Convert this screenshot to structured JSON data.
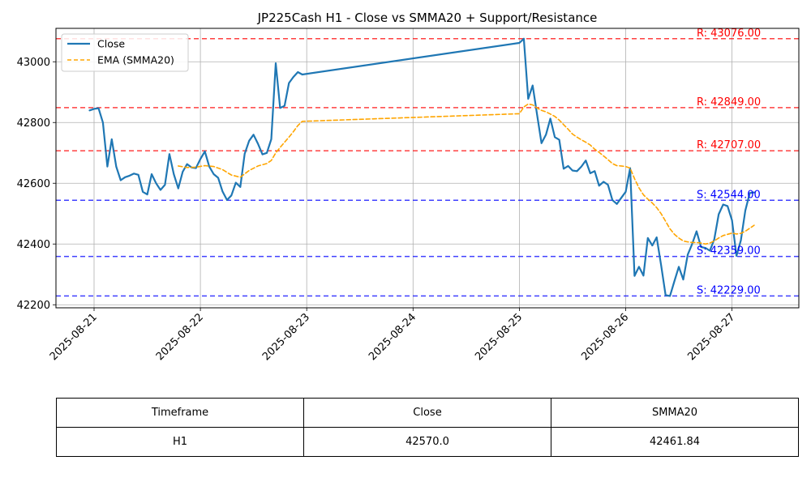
{
  "chart_data": {
    "type": "line",
    "title": "JP225Cash H1 - Close vs SMMA20 + Support/Resistance",
    "xlabel": "",
    "ylabel": "",
    "x_ticks": [
      "2025-08-21",
      "2025-08-22",
      "2025-08-23",
      "2025-08-24",
      "2025-08-25",
      "2025-08-26",
      "2025-08-27"
    ],
    "y_ticks": [
      42200,
      42400,
      42600,
      42800,
      43000
    ],
    "ylim": [
      42190,
      43110
    ],
    "grid": true,
    "legend": "top-left",
    "series": [
      {
        "name": "Close",
        "color": "#1f77b4",
        "style": "solid",
        "points": [
          [
            "2025-08-20 23:00",
            42840
          ],
          [
            "2025-08-21 00:00",
            42845
          ],
          [
            "2025-08-21 01:00",
            42847
          ],
          [
            "2025-08-21 02:00",
            42800
          ],
          [
            "2025-08-21 03:00",
            42655
          ],
          [
            "2025-08-21 04:00",
            42745
          ],
          [
            "2025-08-21 05:00",
            42655
          ],
          [
            "2025-08-21 06:00",
            42610
          ],
          [
            "2025-08-21 07:00",
            42620
          ],
          [
            "2025-08-21 08:00",
            42625
          ],
          [
            "2025-08-21 09:00",
            42632
          ],
          [
            "2025-08-21 10:00",
            42628
          ],
          [
            "2025-08-21 11:00",
            42572
          ],
          [
            "2025-08-21 12:00",
            42563
          ],
          [
            "2025-08-21 13:00",
            42630
          ],
          [
            "2025-08-21 14:00",
            42600
          ],
          [
            "2025-08-21 15:00",
            42578
          ],
          [
            "2025-08-21 16:00",
            42595
          ],
          [
            "2025-08-21 17:00",
            42696
          ],
          [
            "2025-08-21 18:00",
            42630
          ],
          [
            "2025-08-21 19:00",
            42583
          ],
          [
            "2025-08-21 20:00",
            42638
          ],
          [
            "2025-08-21 21:00",
            42663
          ],
          [
            "2025-08-21 22:00",
            42652
          ],
          [
            "2025-08-21 23:00",
            42650
          ],
          [
            "2025-08-22 00:00",
            42680
          ],
          [
            "2025-08-22 01:00",
            42705
          ],
          [
            "2025-08-22 02:00",
            42655
          ],
          [
            "2025-08-22 03:00",
            42630
          ],
          [
            "2025-08-22 04:00",
            42618
          ],
          [
            "2025-08-22 05:00",
            42573
          ],
          [
            "2025-08-22 06:00",
            42545
          ],
          [
            "2025-08-22 07:00",
            42560
          ],
          [
            "2025-08-22 08:00",
            42602
          ],
          [
            "2025-08-22 09:00",
            42588
          ],
          [
            "2025-08-22 10:00",
            42697
          ],
          [
            "2025-08-22 11:00",
            42740
          ],
          [
            "2025-08-22 12:00",
            42760
          ],
          [
            "2025-08-22 13:00",
            42730
          ],
          [
            "2025-08-22 14:00",
            42695
          ],
          [
            "2025-08-22 15:00",
            42700
          ],
          [
            "2025-08-22 16:00",
            42745
          ],
          [
            "2025-08-22 17:00",
            42995
          ],
          [
            "2025-08-22 18:00",
            42848
          ],
          [
            "2025-08-22 19:00",
            42855
          ],
          [
            "2025-08-22 20:00",
            42930
          ],
          [
            "2025-08-22 21:00",
            42950
          ],
          [
            "2025-08-22 22:00",
            42966
          ],
          [
            "2025-08-22 23:00",
            42958
          ],
          [
            "2025-08-25 00:00",
            43062
          ],
          [
            "2025-08-25 01:00",
            43076
          ],
          [
            "2025-08-25 02:00",
            42878
          ],
          [
            "2025-08-25 03:00",
            42922
          ],
          [
            "2025-08-25 04:00",
            42825
          ],
          [
            "2025-08-25 05:00",
            42732
          ],
          [
            "2025-08-25 06:00",
            42760
          ],
          [
            "2025-08-25 07:00",
            42813
          ],
          [
            "2025-08-25 08:00",
            42752
          ],
          [
            "2025-08-25 09:00",
            42743
          ],
          [
            "2025-08-25 10:00",
            42648
          ],
          [
            "2025-08-25 11:00",
            42657
          ],
          [
            "2025-08-25 12:00",
            42642
          ],
          [
            "2025-08-25 13:00",
            42640
          ],
          [
            "2025-08-25 14:00",
            42655
          ],
          [
            "2025-08-25 15:00",
            42675
          ],
          [
            "2025-08-25 16:00",
            42633
          ],
          [
            "2025-08-25 17:00",
            42640
          ],
          [
            "2025-08-25 18:00",
            42592
          ],
          [
            "2025-08-25 19:00",
            42605
          ],
          [
            "2025-08-25 20:00",
            42595
          ],
          [
            "2025-08-25 21:00",
            42545
          ],
          [
            "2025-08-25 22:00",
            42532
          ],
          [
            "2025-08-25 23:00",
            42552
          ],
          [
            "2025-08-26 00:00",
            42572
          ],
          [
            "2025-08-26 01:00",
            42650
          ],
          [
            "2025-08-26 02:00",
            42295
          ],
          [
            "2025-08-26 03:00",
            42325
          ],
          [
            "2025-08-26 04:00",
            42296
          ],
          [
            "2025-08-26 05:00",
            42420
          ],
          [
            "2025-08-26 06:00",
            42395
          ],
          [
            "2025-08-26 07:00",
            42422
          ],
          [
            "2025-08-26 08:00",
            42330
          ],
          [
            "2025-08-26 09:00",
            42232
          ],
          [
            "2025-08-26 10:00",
            42229
          ],
          [
            "2025-08-26 11:00",
            42278
          ],
          [
            "2025-08-26 12:00",
            42325
          ],
          [
            "2025-08-26 13:00",
            42283
          ],
          [
            "2025-08-26 14:00",
            42365
          ],
          [
            "2025-08-26 15:00",
            42400
          ],
          [
            "2025-08-26 16:00",
            42442
          ],
          [
            "2025-08-26 17:00",
            42390
          ],
          [
            "2025-08-26 18:00",
            42387
          ],
          [
            "2025-08-26 19:00",
            42378
          ],
          [
            "2025-08-26 20:00",
            42415
          ],
          [
            "2025-08-26 21:00",
            42498
          ],
          [
            "2025-08-26 22:00",
            42530
          ],
          [
            "2025-08-26 23:00",
            42525
          ],
          [
            "2025-08-27 00:00",
            42478
          ],
          [
            "2025-08-27 01:00",
            42361
          ],
          [
            "2025-08-27 02:00",
            42412
          ],
          [
            "2025-08-27 03:00",
            42510
          ],
          [
            "2025-08-27 04:00",
            42568
          ],
          [
            "2025-08-27 05:00",
            42570
          ]
        ]
      },
      {
        "name": "EMA (SMMA20)",
        "color": "#ffa500",
        "style": "dashed",
        "points": [
          [
            "2025-08-21 19:00",
            42657
          ],
          [
            "2025-08-21 21:00",
            42652
          ],
          [
            "2025-08-21 23:00",
            42653
          ],
          [
            "2025-08-22 01:00",
            42658
          ],
          [
            "2025-08-22 03:00",
            42655
          ],
          [
            "2025-08-22 05:00",
            42645
          ],
          [
            "2025-08-22 07:00",
            42627
          ],
          [
            "2025-08-22 09:00",
            42620
          ],
          [
            "2025-08-22 11:00",
            42642
          ],
          [
            "2025-08-22 13:00",
            42657
          ],
          [
            "2025-08-22 15:00",
            42665
          ],
          [
            "2025-08-22 16:00",
            42675
          ],
          [
            "2025-08-22 17:00",
            42700
          ],
          [
            "2025-08-22 18:00",
            42718
          ],
          [
            "2025-08-22 19:00",
            42735
          ],
          [
            "2025-08-22 20:00",
            42752
          ],
          [
            "2025-08-22 21:00",
            42770
          ],
          [
            "2025-08-22 22:00",
            42790
          ],
          [
            "2025-08-22 23:00",
            42804
          ],
          [
            "2025-08-25 00:00",
            42829
          ],
          [
            "2025-08-25 01:00",
            42851
          ],
          [
            "2025-08-25 02:00",
            42861
          ],
          [
            "2025-08-25 03:00",
            42858
          ],
          [
            "2025-08-25 04:00",
            42848
          ],
          [
            "2025-08-25 05:00",
            42840
          ],
          [
            "2025-08-25 06:00",
            42835
          ],
          [
            "2025-08-25 07:00",
            42828
          ],
          [
            "2025-08-25 08:00",
            42820
          ],
          [
            "2025-08-25 09:00",
            42808
          ],
          [
            "2025-08-25 10:00",
            42793
          ],
          [
            "2025-08-25 11:00",
            42778
          ],
          [
            "2025-08-25 12:00",
            42762
          ],
          [
            "2025-08-25 13:00",
            42752
          ],
          [
            "2025-08-25 14:00",
            42743
          ],
          [
            "2025-08-25 15:00",
            42735
          ],
          [
            "2025-08-25 16:00",
            42726
          ],
          [
            "2025-08-25 17:00",
            42712
          ],
          [
            "2025-08-25 18:00",
            42702
          ],
          [
            "2025-08-25 19:00",
            42690
          ],
          [
            "2025-08-25 20:00",
            42678
          ],
          [
            "2025-08-25 21:00",
            42665
          ],
          [
            "2025-08-25 22:00",
            42658
          ],
          [
            "2025-08-25 23:00",
            42657
          ],
          [
            "2025-08-26 00:00",
            42655
          ],
          [
            "2025-08-26 01:00",
            42650
          ],
          [
            "2025-08-26 02:00",
            42615
          ],
          [
            "2025-08-26 03:00",
            42585
          ],
          [
            "2025-08-26 04:00",
            42562
          ],
          [
            "2025-08-26 05:00",
            42548
          ],
          [
            "2025-08-26 06:00",
            42535
          ],
          [
            "2025-08-26 07:00",
            42520
          ],
          [
            "2025-08-26 08:00",
            42500
          ],
          [
            "2025-08-26 09:00",
            42475
          ],
          [
            "2025-08-26 10:00",
            42450
          ],
          [
            "2025-08-26 11:00",
            42432
          ],
          [
            "2025-08-26 12:00",
            42420
          ],
          [
            "2025-08-26 13:00",
            42410
          ],
          [
            "2025-08-26 14:00",
            42407
          ],
          [
            "2025-08-26 15:00",
            42405
          ],
          [
            "2025-08-26 16:00",
            42405
          ],
          [
            "2025-08-26 17:00",
            42403
          ],
          [
            "2025-08-26 18:00",
            42400
          ],
          [
            "2025-08-26 19:00",
            42403
          ],
          [
            "2025-08-26 20:00",
            42410
          ],
          [
            "2025-08-26 21:00",
            42420
          ],
          [
            "2025-08-26 22:00",
            42428
          ],
          [
            "2025-08-26 23:00",
            42432
          ],
          [
            "2025-08-27 00:00",
            42436
          ],
          [
            "2025-08-27 01:00",
            42433
          ],
          [
            "2025-08-27 02:00",
            42435
          ],
          [
            "2025-08-27 03:00",
            42442
          ],
          [
            "2025-08-27 04:00",
            42452
          ],
          [
            "2025-08-27 05:00",
            42461.84
          ]
        ]
      }
    ],
    "resistance": [
      {
        "label": "R: 43076.00",
        "value": 43076
      },
      {
        "label": "R: 42849.00",
        "value": 42849
      },
      {
        "label": "R: 42707.00",
        "value": 42707
      }
    ],
    "support": [
      {
        "label": "S: 42544.00",
        "value": 42544
      },
      {
        "label": "S: 42359.00",
        "value": 42359
      },
      {
        "label": "S: 42229.00",
        "value": 42229
      }
    ],
    "colors": {
      "resistance": "#ff0000",
      "support": "#0000ff",
      "grid": "#b0b0b0"
    }
  },
  "table": {
    "headers": [
      "Timeframe",
      "Close",
      "SMMA20"
    ],
    "rows": [
      [
        "H1",
        "42570.0",
        "42461.84"
      ]
    ]
  }
}
